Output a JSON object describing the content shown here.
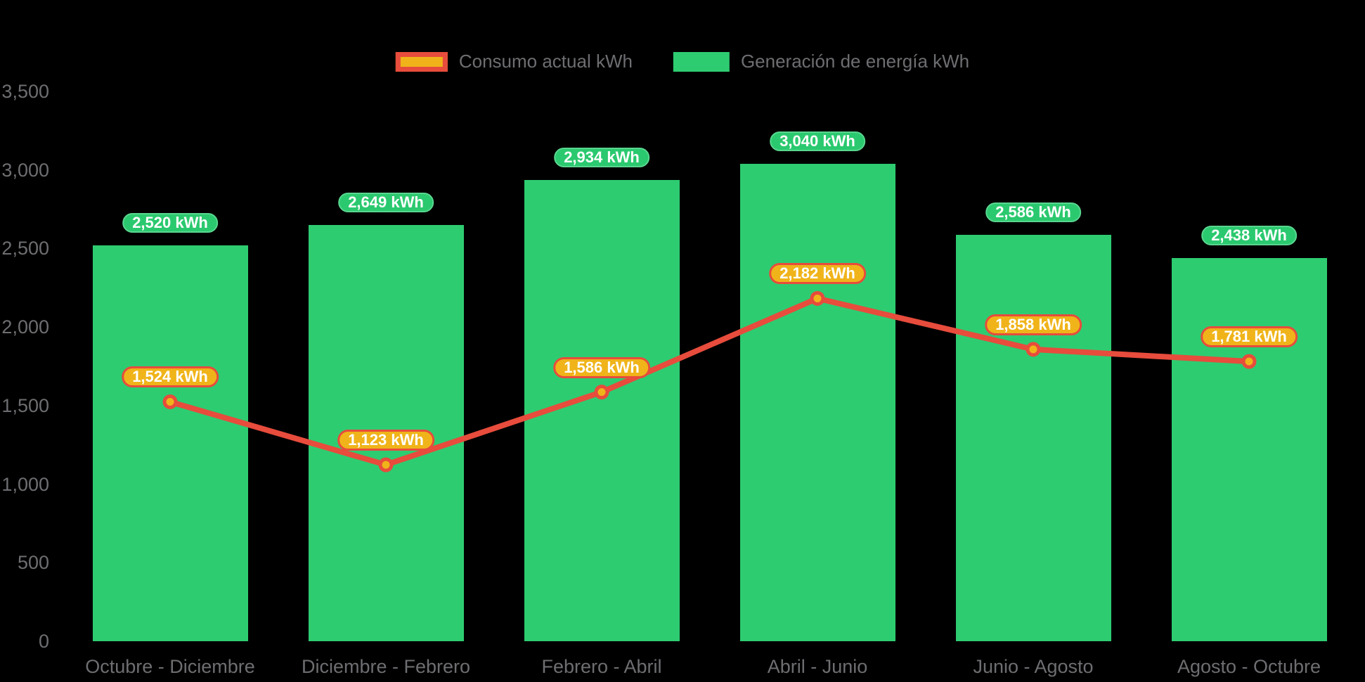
{
  "units": "kWh",
  "colors": {
    "background": "#000000",
    "bar_fill": "#2ecc71",
    "bar_badge_fill": "#2bc96f",
    "bar_badge_border": "#59d68f",
    "line_stroke": "#e74c3c",
    "marker_fill": "#f0b41a",
    "consumption_badge_fill": "#f0b41a",
    "consumption_badge_border": "#e74c3c",
    "axis_text": "#6d6e71",
    "badge_text": "#ffffff"
  },
  "legend": {
    "items": [
      {
        "label": "Consumo actual kWh"
      },
      {
        "label": "Generación de energía kWh"
      }
    ]
  },
  "chart_data": {
    "type": "bar-line-combo",
    "title": "",
    "xlabel": "",
    "ylabel": "",
    "categories": [
      "Octubre - Diciembre",
      "Diciembre - Febrero",
      "Febrero - Abril",
      "Abril - Junio",
      "Junio - Agosto",
      "Agosto - Octubre"
    ],
    "series": [
      {
        "name": "Generación de energía kWh",
        "type": "bar",
        "color": "#2ecc71",
        "values": [
          2520,
          2649,
          2934,
          3040,
          2586,
          2438
        ],
        "point_labels": [
          "2,520 kWh",
          "2,649 kWh",
          "2,934 kWh",
          "3,040 kWh",
          "2,586 kWh",
          "2,438 kWh"
        ]
      },
      {
        "name": "Consumo actual kWh",
        "type": "line",
        "color": "#e74c3c",
        "marker_color": "#f0b41a",
        "values": [
          1524,
          1123,
          1586,
          2182,
          1858,
          1781
        ],
        "point_labels": [
          "1,524 kWh",
          "1,123 kWh",
          "1,586 kWh",
          "2,182 kWh",
          "1,858 kWh",
          "1,781 kWh"
        ]
      }
    ],
    "ylim": [
      0,
      3500
    ],
    "yticks": [
      0,
      500,
      1000,
      1500,
      2000,
      2500,
      3000,
      3500
    ],
    "ytick_labels": [
      "0",
      "500",
      "1,000",
      "1,500",
      "2,000",
      "2,500",
      "3,000",
      "3,500"
    ],
    "grid": false,
    "legend_position": "top-center"
  }
}
